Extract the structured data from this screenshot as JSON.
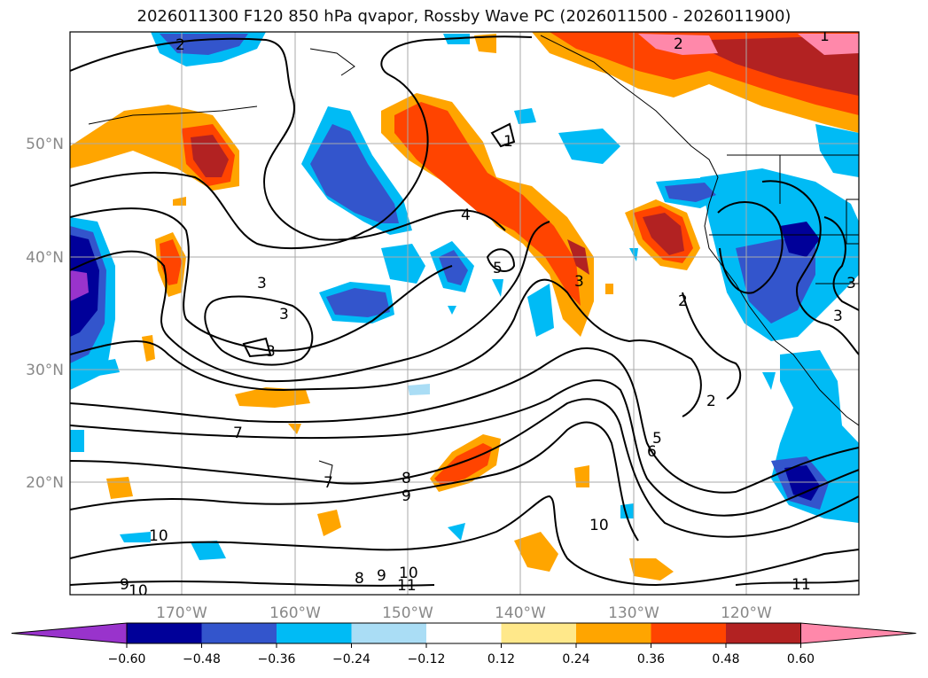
{
  "title": "2026011300 F120 850 hPa qvapor, Rossby Wave PC (2026011500 - 2026011900)",
  "lat_ticks": [
    "50°N",
    "40°N",
    "30°N",
    "20°N"
  ],
  "lon_ticks": [
    "170°W",
    "160°W",
    "150°W",
    "140°W",
    "130°W",
    "120°W"
  ],
  "contour_labels": [
    "2",
    "1",
    "2",
    "1",
    "4",
    "3",
    "3",
    "3",
    "5",
    "3",
    "2",
    "2",
    "3",
    "7",
    "6",
    "5",
    "7",
    "8",
    "9",
    "10",
    "10",
    "10",
    "9",
    "8",
    "9",
    "10",
    "11",
    "11",
    "3"
  ],
  "colorbar": {
    "ticks": [
      "−0.60",
      "−0.48",
      "−0.36",
      "−0.24",
      "−0.12",
      "0.12",
      "0.24",
      "0.36",
      "0.48",
      "0.60"
    ],
    "colors": [
      "#9933cc",
      "#000099",
      "#3355cc",
      "#00bbf5",
      "#aaddf5",
      "#ffffff",
      "#ffe88a",
      "#ffa500",
      "#ff4400",
      "#b22222",
      "#ff88aa"
    ]
  },
  "chart_data": {
    "type": "heatmap",
    "title": "2026011300 F120 850 hPa qvapor, Rossby Wave PC (2026011500 - 2026011900)",
    "lon_range": [
      "180°W",
      "110°W"
    ],
    "lat_range": [
      "10°N",
      "60°N"
    ],
    "shaded_field": "Rossby Wave PC",
    "contour_field": "850 hPa qvapor",
    "color_levels": [
      -0.6,
      -0.48,
      -0.36,
      -0.24,
      -0.12,
      0.12,
      0.24,
      0.36,
      0.48,
      0.6
    ],
    "grid": true
  }
}
